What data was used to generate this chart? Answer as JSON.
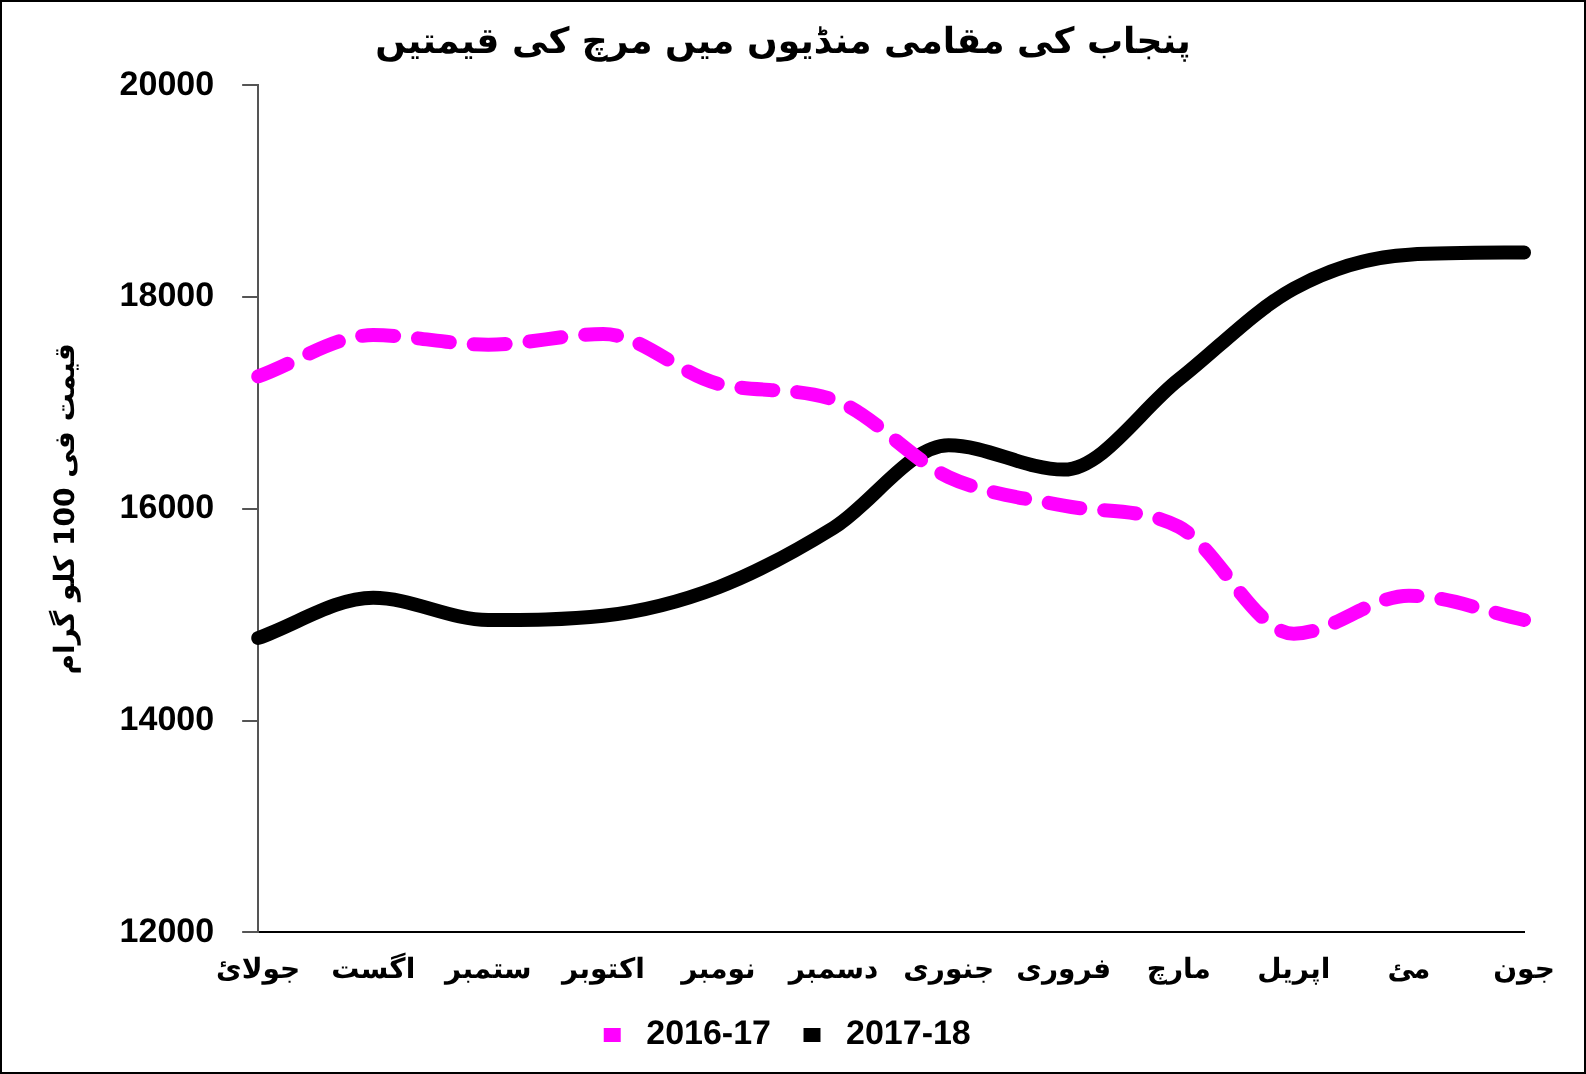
{
  "chart_data": {
    "type": "line",
    "title": "پنجاب کی مقامی منڈیوں میں مرچ کی قیمتیں",
    "ylabel": "قیمت فی 100 کلو گرام",
    "categories": [
      "جولائ",
      "اگست",
      "ستمبر",
      "اکتوبر",
      "نومبر",
      "دسمبر",
      "جنوری",
      "فروری",
      "مارچ",
      "اپریل",
      "مئ",
      "جون"
    ],
    "series": [
      {
        "name": "2016-17",
        "color": "#ff00ff",
        "line_style": "dashed",
        "values": [
          17250,
          17640,
          17550,
          17650,
          17180,
          17030,
          16300,
          16030,
          15830,
          14820,
          15180,
          14950
        ]
      },
      {
        "name": "2017-18",
        "color": "#000000",
        "line_style": "solid",
        "values": [
          14780,
          15160,
          14950,
          14990,
          15260,
          15820,
          16600,
          16370,
          17220,
          18080,
          18400,
          18420
        ]
      }
    ],
    "ylim": [
      12000,
      20000
    ],
    "yticks": [
      12000,
      14000,
      16000,
      18000,
      20000
    ],
    "grid": false,
    "legend": "bottom",
    "marker": "none"
  }
}
